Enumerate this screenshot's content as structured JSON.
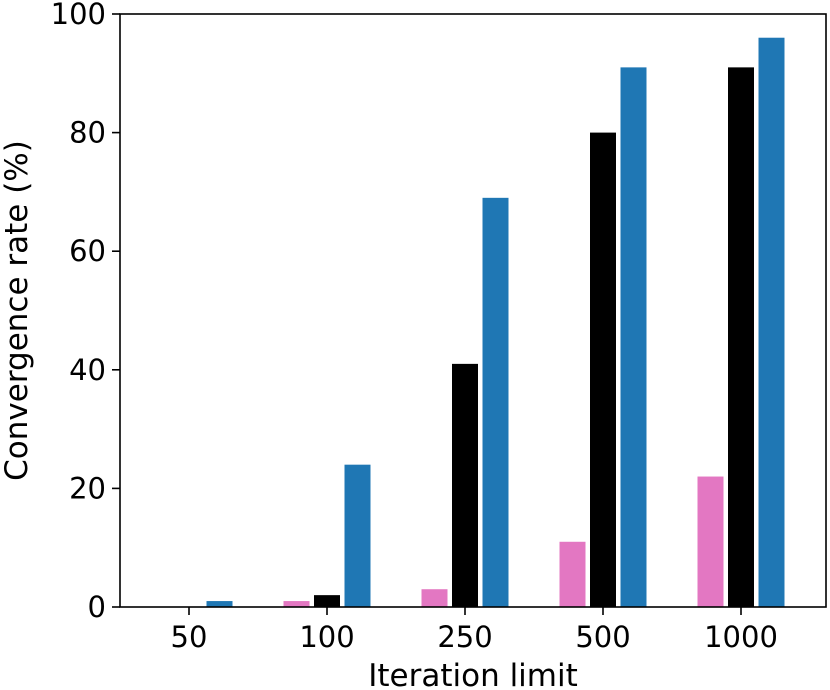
{
  "chart_data": {
    "type": "bar",
    "title": "",
    "xlabel": "Iteration limit",
    "ylabel": "Convergence rate (%)",
    "categories": [
      "50",
      "100",
      "250",
      "500",
      "1000"
    ],
    "ylim": [
      0,
      100
    ],
    "yticks": [
      "0",
      "20",
      "40",
      "60",
      "80",
      "100"
    ],
    "grid": false,
    "legend": "none",
    "series": [
      {
        "color": "#e377c2",
        "values": [
          0,
          1,
          3,
          11,
          22
        ]
      },
      {
        "color": "#000000",
        "values": [
          0,
          2,
          41,
          80,
          91
        ]
      },
      {
        "color": "#1f77b4",
        "values": [
          1,
          24,
          69,
          91,
          96
        ]
      }
    ]
  }
}
